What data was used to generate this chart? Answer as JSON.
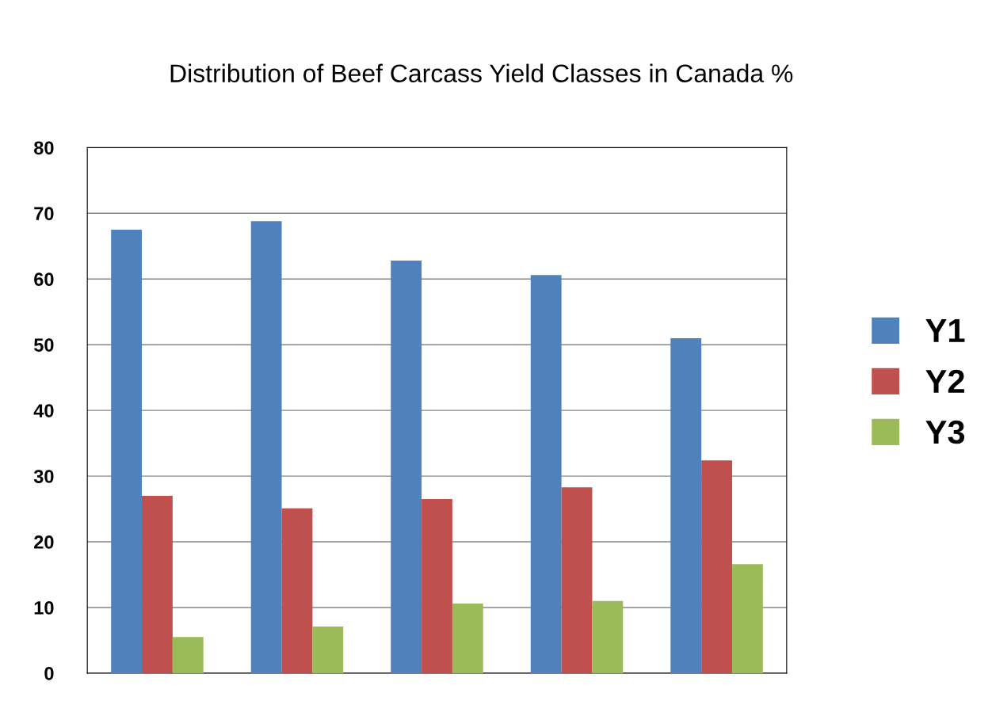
{
  "chart_data": {
    "type": "bar",
    "title": "Distribution of Beef Carcass Yield Classes in Canada %",
    "categories": [
      null,
      null,
      null,
      null,
      null
    ],
    "series": [
      {
        "name": "Y1",
        "color": "#4f81bd",
        "values": [
          67.5,
          68.8,
          62.8,
          60.6,
          51.0
        ]
      },
      {
        "name": "Y2",
        "color": "#c0504d",
        "values": [
          27.0,
          25.1,
          26.5,
          28.3,
          32.4
        ]
      },
      {
        "name": "Y3",
        "color": "#9bbb59",
        "values": [
          5.5,
          7.1,
          10.6,
          11.0,
          16.6
        ]
      }
    ],
    "ylim": [
      0,
      80
    ],
    "yticks": [
      0,
      10,
      20,
      30,
      40,
      50,
      60,
      70,
      80
    ],
    "grid": "y",
    "legend": "right",
    "tick_labels": "y"
  }
}
